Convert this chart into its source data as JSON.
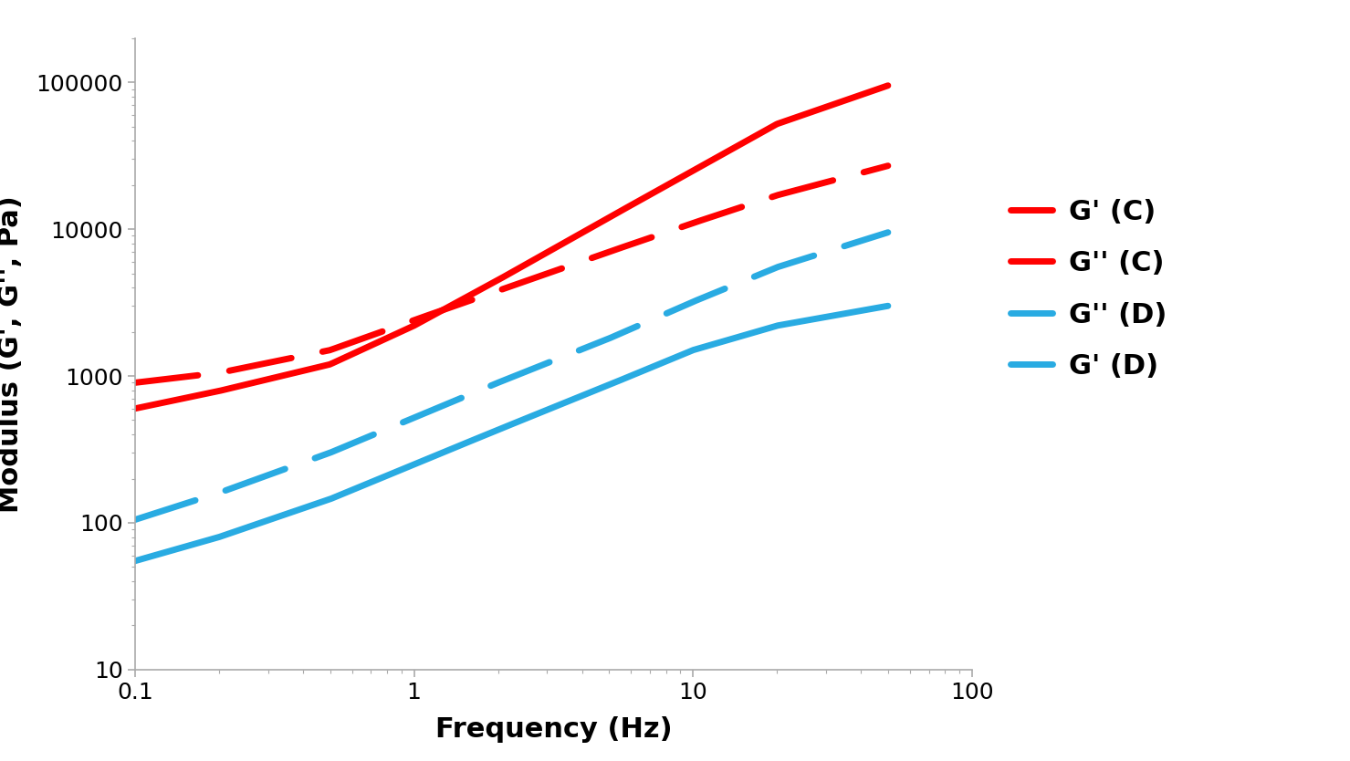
{
  "xlabel": "Frequency (Hz)",
  "ylabel": "Modulus (G', G'', Pa)",
  "xlim": [
    0.1,
    100
  ],
  "ylim": [
    10,
    200000
  ],
  "legend_labels": [
    "G' (C)",
    "G'' (C)",
    "G'' (D)",
    "G' (D)"
  ],
  "curves": {
    "G_prime_C": {
      "color": "#FF0000",
      "linestyle": "solid",
      "linewidth": 5.0,
      "anchors": [
        [
          0.1,
          600
        ],
        [
          0.2,
          790
        ],
        [
          0.5,
          1200
        ],
        [
          1.0,
          2200
        ],
        [
          2.0,
          4500
        ],
        [
          5.0,
          12000
        ],
        [
          10.0,
          25000
        ],
        [
          20.0,
          52000
        ],
        [
          50.0,
          95000
        ]
      ]
    },
    "G_double_prime_C": {
      "color": "#FF0000",
      "linestyle": "dashed",
      "linewidth": 5.0,
      "anchors": [
        [
          0.1,
          900
        ],
        [
          0.2,
          1050
        ],
        [
          0.5,
          1500
        ],
        [
          1.0,
          2400
        ],
        [
          2.0,
          3800
        ],
        [
          5.0,
          7000
        ],
        [
          10.0,
          11000
        ],
        [
          20.0,
          17000
        ],
        [
          50.0,
          27000
        ]
      ]
    },
    "G_double_prime_D": {
      "color": "#29ABE2",
      "linestyle": "dashed",
      "linewidth": 5.0,
      "anchors": [
        [
          0.1,
          105
        ],
        [
          0.2,
          160
        ],
        [
          0.5,
          300
        ],
        [
          1.0,
          520
        ],
        [
          2.0,
          900
        ],
        [
          5.0,
          1800
        ],
        [
          10.0,
          3200
        ],
        [
          20.0,
          5500
        ],
        [
          50.0,
          9500
        ]
      ]
    },
    "G_prime_D": {
      "color": "#29ABE2",
      "linestyle": "solid",
      "linewidth": 5.0,
      "anchors": [
        [
          0.1,
          55
        ],
        [
          0.2,
          80
        ],
        [
          0.5,
          145
        ],
        [
          1.0,
          250
        ],
        [
          2.0,
          430
        ],
        [
          5.0,
          870
        ],
        [
          10.0,
          1500
        ],
        [
          20.0,
          2200
        ],
        [
          50.0,
          3000
        ]
      ]
    }
  },
  "background_color": "#FFFFFF",
  "spine_color": "#AAAAAA",
  "label_fontsize": 22,
  "tick_fontsize": 18,
  "legend_fontsize": 22,
  "dash_on": 10,
  "dash_off": 5
}
